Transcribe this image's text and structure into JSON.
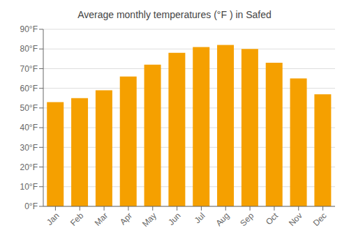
{
  "chart_data": {
    "type": "bar",
    "title": "Average monthly temperatures (°F ) in Safed",
    "categories": [
      "Jan",
      "Feb",
      "Mar",
      "Apr",
      "May",
      "Jun",
      "Jul",
      "Aug",
      "Sep",
      "Oct",
      "Nov",
      "Dec"
    ],
    "values": [
      53,
      55,
      59,
      66,
      72,
      78,
      81,
      82,
      80,
      73,
      65,
      57
    ],
    "color": "#F5A000",
    "ylim": [
      0,
      90
    ],
    "yticks": [
      {
        "value": 0,
        "label": "0°F"
      },
      {
        "value": 10,
        "label": "10°F"
      },
      {
        "value": 20,
        "label": "20°F"
      },
      {
        "value": 30,
        "label": "30°F"
      },
      {
        "value": 40,
        "label": "40°F"
      },
      {
        "value": 50,
        "label": "50°F"
      },
      {
        "value": 60,
        "label": "60°F"
      },
      {
        "value": 70,
        "label": "70°F"
      },
      {
        "value": 80,
        "label": "80°F"
      },
      {
        "value": 90,
        "label": "90°F"
      }
    ],
    "grid": true
  }
}
